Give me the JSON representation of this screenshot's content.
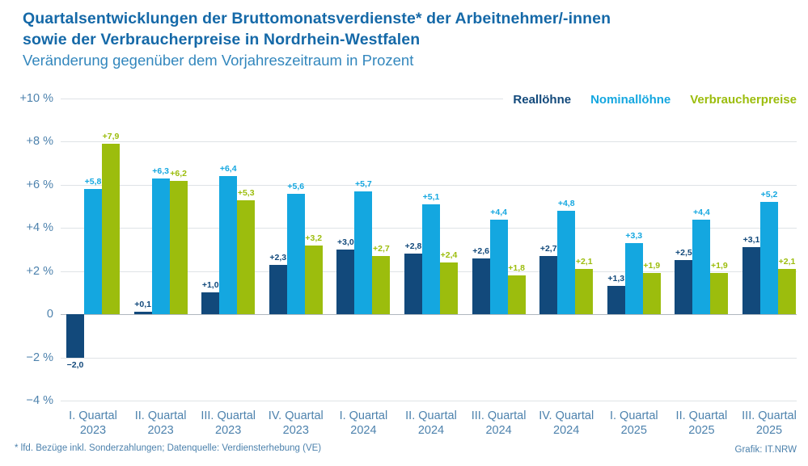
{
  "header": {
    "title_line1": "Quartalsentwicklungen der Bruttomonatsverdienste* der Arbeitnehmer/-innen",
    "title_line2": "sowie der Verbraucherpreise in Nordrhein-Westfalen",
    "subtitle": "Veränderung gegenüber dem Vorjahreszeitraum in Prozent"
  },
  "footer": {
    "note": "* lfd. Bezüge inkl. Sonderzahlungen; Datenquelle: Verdiensterhebung (VE)",
    "credit": "Grafik: IT.NRW"
  },
  "colors": {
    "title": "#1569A8",
    "subtitle": "#3387BD",
    "axis_text": "#4D82AD",
    "grid": "#DFE3E6",
    "zero_line": "#AFB7BE"
  },
  "chart_data": {
    "type": "bar",
    "title": "Quartalsentwicklungen der Bruttomonatsverdienste der Arbeitnehmer/-innen sowie der Verbraucherpreise in Nordrhein-Westfalen",
    "subtitle": "Veränderung gegenüber dem Vorjahreszeitraum in Prozent",
    "unit": "%",
    "grid": true,
    "legend_position": "top-right",
    "ylim": [
      -4,
      10
    ],
    "y_ticks": [
      "+10 %",
      "+8 %",
      "+6 %",
      "+4 %",
      "+2 %",
      "0",
      "−2 %",
      "−4 %"
    ],
    "categories": [
      [
        "I. Quartal",
        "2023"
      ],
      [
        "II. Quartal",
        "2023"
      ],
      [
        "III. Quartal",
        "2023"
      ],
      [
        "IV. Quartal",
        "2023"
      ],
      [
        "I. Quartal",
        "2024"
      ],
      [
        "II. Quartal",
        "2024"
      ],
      [
        "III. Quartal",
        "2024"
      ],
      [
        "IV. Quartal",
        "2024"
      ],
      [
        "I. Quartal",
        "2025"
      ],
      [
        "II. Quartal",
        "2025"
      ],
      [
        "III. Quartal",
        "2025"
      ]
    ],
    "series": [
      {
        "name": "Reallöhne",
        "color": "#12497B",
        "values": [
          -2.0,
          0.1,
          1.0,
          2.3,
          3.0,
          2.8,
          2.6,
          2.7,
          1.3,
          2.5,
          3.1
        ],
        "labels": [
          "−2,0",
          "+0,1",
          "+1,0",
          "+2,3",
          "+3,0",
          "+2,8",
          "+2,6",
          "+2,7",
          "+1,3",
          "+2,5",
          "+3,1"
        ]
      },
      {
        "name": "Nominallöhne",
        "color": "#14A7E0",
        "values": [
          5.8,
          6.3,
          6.4,
          5.6,
          5.7,
          5.1,
          4.4,
          4.8,
          3.3,
          4.4,
          5.2
        ],
        "labels": [
          "+5,8",
          "+6,3",
          "+6,4",
          "+5,6",
          "+5,7",
          "+5,1",
          "+4,4",
          "+4,8",
          "+3,3",
          "+4,4",
          "+5,2"
        ]
      },
      {
        "name": "Verbraucherpreise",
        "color": "#9CBD0D",
        "values": [
          7.9,
          6.2,
          5.3,
          3.2,
          2.7,
          2.4,
          1.8,
          2.1,
          1.9,
          1.9,
          2.1
        ],
        "labels": [
          "+7,9",
          "+6,2",
          "+5,3",
          "+3,2",
          "+2,7",
          "+2,4",
          "+1,8",
          "+2,1",
          "+1,9",
          "+1,9",
          "+2,1"
        ]
      }
    ]
  }
}
